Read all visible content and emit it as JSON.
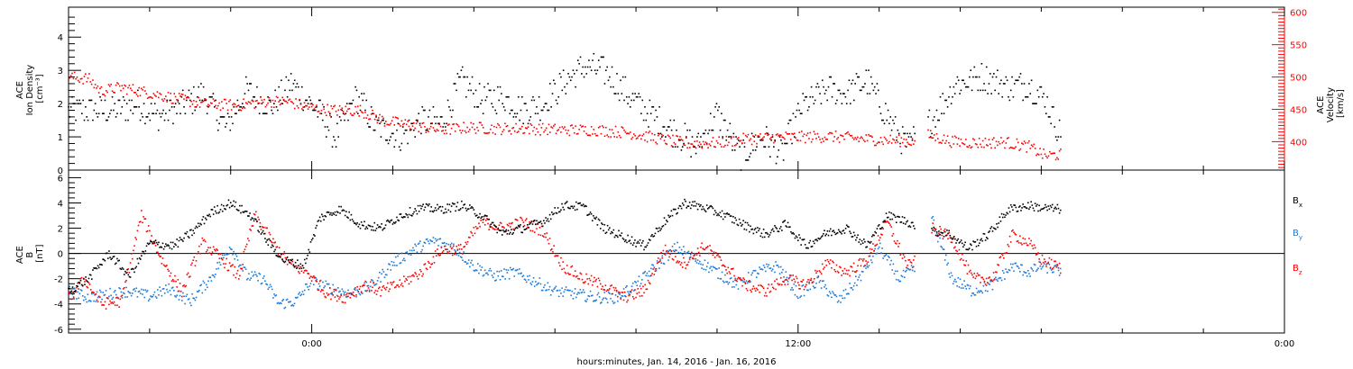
{
  "chart_data": [
    {
      "type": "scatter",
      "panel": "top",
      "ylabel_left": [
        "ACE",
        "Ion Density",
        "[cm⁻³]"
      ],
      "ylabel_right": [
        "ACE",
        "Velocity",
        "[km/s]"
      ],
      "left_axis": {
        "range": [
          0,
          4.9
        ],
        "ticks": [
          0,
          1,
          2,
          3,
          4
        ],
        "tick_labels": [
          "0",
          "1",
          "2",
          "3",
          "4"
        ]
      },
      "right_axis": {
        "range": [
          356,
          608
        ],
        "ticks": [
          400,
          450,
          500,
          550,
          600
        ],
        "tick_labels": [
          "400",
          "450",
          "500",
          "550",
          "600"
        ]
      },
      "series": [
        {
          "name": "",
          "axis": "left",
          "color": "#000000",
          "breakpoints": [
            [
              -4.8,
              1.8
            ],
            [
              -4.3,
              2.0
            ],
            [
              -3.8,
              1.6
            ],
            [
              -3.2,
              1.9
            ],
            [
              -2.7,
              2.3
            ],
            [
              -2.1,
              1.3
            ],
            [
              -1.6,
              2.4
            ],
            [
              -1.0,
              1.9
            ],
            [
              -0.5,
              2.6
            ],
            [
              0.2,
              1.7
            ],
            [
              0.6,
              1.0
            ],
            [
              1.1,
              2.2
            ],
            [
              1.6,
              1.3
            ],
            [
              2.2,
              1.0
            ],
            [
              2.7,
              1.5
            ],
            [
              3.2,
              1.4
            ],
            [
              3.7,
              2.7
            ],
            [
              4.2,
              2.1
            ],
            [
              4.7,
              2.2
            ],
            [
              5.2,
              1.8
            ],
            [
              5.7,
              2.0
            ],
            [
              6.2,
              2.6
            ],
            [
              6.7,
              3.1
            ],
            [
              7.2,
              3.0
            ],
            [
              7.7,
              2.4
            ],
            [
              8.2,
              1.8
            ],
            [
              8.9,
              1.2
            ],
            [
              9.5,
              0.7
            ],
            [
              10.0,
              1.7
            ],
            [
              10.6,
              0.4
            ],
            [
              11.1,
              1.0
            ],
            [
              11.6,
              0.5
            ],
            [
              12.1,
              1.9
            ],
            [
              12.7,
              2.4
            ],
            [
              13.2,
              2.3
            ],
            [
              13.7,
              2.7
            ],
            [
              14.3,
              1.4
            ],
            [
              14.7,
              0.7
            ],
            [
              15.3,
              1.5
            ],
            [
              15.9,
              2.6
            ],
            [
              16.6,
              2.8
            ],
            [
              17.2,
              2.5
            ],
            [
              17.7,
              2.6
            ],
            [
              18.1,
              2.1
            ],
            [
              18.5,
              1.0
            ]
          ],
          "gaps": [
            [
              14.9,
              15.2
            ]
          ],
          "y_end_hours": 18.5
        },
        {
          "name": "",
          "axis": "right",
          "color": "#ff0000",
          "breakpoints": [
            [
              -6,
              500
            ],
            [
              -5.5,
              497
            ],
            [
              -5.2,
              478
            ],
            [
              -4.7,
              484
            ],
            [
              -4.0,
              475
            ],
            [
              -3.3,
              466
            ],
            [
              -2.6,
              458
            ],
            [
              -1.8,
              456
            ],
            [
              -1.2,
              462
            ],
            [
              -0.6,
              462
            ],
            [
              0,
              452
            ],
            [
              0.6,
              448
            ],
            [
              1.2,
              448
            ],
            [
              1.8,
              432
            ],
            [
              2.5,
              425
            ],
            [
              3.2,
              418
            ],
            [
              3.9,
              422
            ],
            [
              4.6,
              420
            ],
            [
              5.4,
              420
            ],
            [
              6.2,
              418
            ],
            [
              7.0,
              418
            ],
            [
              7.8,
              414
            ],
            [
              8.6,
              404
            ],
            [
              9.3,
              397
            ],
            [
              10.0,
              398
            ],
            [
              10.7,
              404
            ],
            [
              11.4,
              407
            ],
            [
              12.1,
              407
            ],
            [
              12.8,
              408
            ],
            [
              13.6,
              404
            ],
            [
              14.3,
              402
            ],
            [
              14.9,
              400
            ],
            [
              15.2,
              410
            ],
            [
              15.8,
              400
            ],
            [
              16.4,
              398
            ],
            [
              17.1,
              399
            ],
            [
              17.7,
              392
            ],
            [
              18.1,
              378
            ],
            [
              18.5,
              380
            ]
          ],
          "gaps": [
            [
              14.9,
              15.2
            ]
          ],
          "y_end_hours": 18.5
        }
      ],
      "right_axis_color": "#ff0000"
    },
    {
      "type": "scatter",
      "panel": "bottom",
      "ylabel_left": [
        "ACE",
        "B",
        "[nT]"
      ],
      "left_axis": {
        "range": [
          -6.3,
          6.6
        ],
        "ticks": [
          -6,
          -4,
          -2,
          0,
          2,
          4,
          6
        ],
        "tick_labels": [
          "-6",
          "-4",
          "-2",
          "0",
          "2",
          "4",
          "6"
        ]
      },
      "zero_line": true,
      "legend_placement": "right",
      "series": [
        {
          "name": "Bx",
          "label_main": "B",
          "label_sub": "x",
          "color": "#000000",
          "breakpoints": [
            [
              -6,
              -3.0
            ],
            [
              -5.5,
              -2.0
            ],
            [
              -5.0,
              0.0
            ],
            [
              -4.5,
              -1.8
            ],
            [
              -4.0,
              0.8
            ],
            [
              -3.4,
              0.6
            ],
            [
              -2.9,
              1.8
            ],
            [
              -2.5,
              3.2
            ],
            [
              -2.0,
              4.0
            ],
            [
              -1.5,
              3.0
            ],
            [
              -1.1,
              1.0
            ],
            [
              -0.7,
              -0.5
            ],
            [
              -0.2,
              -1.0
            ],
            [
              0.2,
              2.8
            ],
            [
              0.7,
              3.5
            ],
            [
              1.2,
              2.3
            ],
            [
              1.7,
              2.0
            ],
            [
              2.2,
              3.0
            ],
            [
              2.7,
              3.6
            ],
            [
              3.2,
              3.5
            ],
            [
              3.7,
              3.8
            ],
            [
              4.2,
              3.0
            ],
            [
              4.7,
              1.6
            ],
            [
              5.2,
              2.0
            ],
            [
              5.7,
              2.5
            ],
            [
              6.2,
              3.8
            ],
            [
              6.7,
              3.7
            ],
            [
              7.2,
              2.0
            ],
            [
              7.7,
              1.3
            ],
            [
              8.2,
              0.6
            ],
            [
              8.7,
              2.5
            ],
            [
              9.2,
              4.0
            ],
            [
              9.7,
              3.6
            ],
            [
              10.2,
              3.0
            ],
            [
              10.7,
              2.2
            ],
            [
              11.2,
              1.5
            ],
            [
              11.7,
              2.3
            ],
            [
              12.2,
              0.6
            ],
            [
              12.7,
              1.6
            ],
            [
              13.2,
              2.0
            ],
            [
              13.7,
              0.6
            ],
            [
              14.2,
              3.0
            ],
            [
              14.7,
              2.5
            ],
            [
              15.2,
              1.8
            ],
            [
              15.7,
              1.6
            ],
            [
              16.2,
              0.4
            ],
            [
              16.7,
              1.5
            ],
            [
              17.2,
              3.5
            ],
            [
              17.7,
              3.8
            ],
            [
              18.0,
              3.6
            ],
            [
              18.5,
              3.5
            ]
          ],
          "gaps": [
            [
              14.9,
              15.3
            ]
          ],
          "y_end_hours": 18.5
        },
        {
          "name": "By",
          "label_main": "B",
          "label_sub": "y",
          "color": "#1c7ad6",
          "breakpoints": [
            [
              -6,
              -3.0
            ],
            [
              -5.5,
              -3.5
            ],
            [
              -5.0,
              -3.2
            ],
            [
              -4.5,
              -3.0
            ],
            [
              -4.0,
              -3.4
            ],
            [
              -3.5,
              -2.8
            ],
            [
              -3.0,
              -3.8
            ],
            [
              -2.5,
              -2.0
            ],
            [
              -2.0,
              0.6
            ],
            [
              -1.6,
              -1.8
            ],
            [
              -1.2,
              -2.0
            ],
            [
              -0.8,
              -4.0
            ],
            [
              -0.4,
              -3.8
            ],
            [
              0,
              -2.2
            ],
            [
              0.5,
              -2.8
            ],
            [
              1.0,
              -3.2
            ],
            [
              1.5,
              -2.5
            ],
            [
              2.0,
              -0.8
            ],
            [
              2.5,
              0.3
            ],
            [
              3.0,
              1.0
            ],
            [
              3.5,
              0.5
            ],
            [
              4.0,
              -1.0
            ],
            [
              4.5,
              -1.8
            ],
            [
              5.0,
              -1.5
            ],
            [
              5.5,
              -2.2
            ],
            [
              6.0,
              -3.0
            ],
            [
              6.5,
              -3.2
            ],
            [
              7.0,
              -3.5
            ],
            [
              7.5,
              -3.5
            ],
            [
              8.0,
              -2.5
            ],
            [
              8.5,
              -1.0
            ],
            [
              9.0,
              0.5
            ],
            [
              9.5,
              -0.5
            ],
            [
              10.0,
              -1.5
            ],
            [
              10.5,
              -2.5
            ],
            [
              11.0,
              -1.5
            ],
            [
              11.5,
              -1.0
            ],
            [
              12.0,
              -3.2
            ],
            [
              12.5,
              -2.2
            ],
            [
              13.0,
              -3.8
            ],
            [
              13.5,
              -2.0
            ],
            [
              14.0,
              0.5
            ],
            [
              14.5,
              -2.0
            ],
            [
              14.9,
              -1.2
            ],
            [
              15.3,
              2.8
            ],
            [
              15.8,
              -2.0
            ],
            [
              16.3,
              -3.0
            ],
            [
              16.8,
              -2.5
            ],
            [
              17.3,
              -1.0
            ],
            [
              17.7,
              -1.5
            ],
            [
              18.0,
              -1.0
            ],
            [
              18.5,
              -1.4
            ]
          ],
          "gaps": [
            [
              14.9,
              15.3
            ]
          ],
          "y_end_hours": 18.5
        },
        {
          "name": "Bz",
          "label_main": "B",
          "label_sub": "z",
          "color": "#ff0000",
          "breakpoints": [
            [
              -6,
              -3.6
            ],
            [
              -5.6,
              -2.0
            ],
            [
              -5.2,
              -4.0
            ],
            [
              -4.7,
              -3.8
            ],
            [
              -4.2,
              3.0
            ],
            [
              -3.7,
              -0.5
            ],
            [
              -3.2,
              -3.0
            ],
            [
              -2.7,
              0.8
            ],
            [
              -2.3,
              -0.2
            ],
            [
              -1.8,
              -1.8
            ],
            [
              -1.4,
              3.0
            ],
            [
              -0.9,
              0.6
            ],
            [
              -0.5,
              -1.0
            ],
            [
              -0.1,
              -1.5
            ],
            [
              0.3,
              -3.0
            ],
            [
              0.8,
              -3.5
            ],
            [
              1.3,
              -2.5
            ],
            [
              1.7,
              -3.0
            ],
            [
              2.2,
              -2.4
            ],
            [
              2.7,
              -1.5
            ],
            [
              3.2,
              0.3
            ],
            [
              3.7,
              0.3
            ],
            [
              4.2,
              2.5
            ],
            [
              4.7,
              2.0
            ],
            [
              5.2,
              2.5
            ],
            [
              5.7,
              1.8
            ],
            [
              6.2,
              -1.0
            ],
            [
              6.7,
              -2.0
            ],
            [
              7.2,
              -2.5
            ],
            [
              7.7,
              -3.5
            ],
            [
              8.2,
              -3.0
            ],
            [
              8.7,
              0.3
            ],
            [
              9.2,
              -0.8
            ],
            [
              9.7,
              0.6
            ],
            [
              10.2,
              -1.0
            ],
            [
              10.7,
              -2.5
            ],
            [
              11.2,
              -3.0
            ],
            [
              11.7,
              -2.0
            ],
            [
              12.2,
              -2.5
            ],
            [
              12.7,
              -0.8
            ],
            [
              13.2,
              -1.5
            ],
            [
              13.7,
              -0.5
            ],
            [
              14.2,
              2.5
            ],
            [
              14.7,
              -1.0
            ],
            [
              14.9,
              -0.6
            ],
            [
              15.3,
              2.0
            ],
            [
              15.8,
              1.2
            ],
            [
              16.3,
              -2.0
            ],
            [
              16.8,
              -2.0
            ],
            [
              17.3,
              1.5
            ],
            [
              17.7,
              0.8
            ],
            [
              18.0,
              -0.5
            ],
            [
              18.5,
              -1.2
            ]
          ],
          "gaps": [
            [
              14.9,
              15.3
            ]
          ],
          "y_end_hours": 18.5
        }
      ]
    }
  ],
  "x_axis": {
    "range_hours": [
      -6,
      24
    ],
    "major_tick_labels": [
      "0:00",
      "12:00",
      "0:00"
    ],
    "major_tick_hours": [
      0,
      12,
      24
    ],
    "minor_tick_step_hours": 2,
    "label": "hours:minutes, Jan. 14, 2016 - Jan. 16, 2016"
  }
}
